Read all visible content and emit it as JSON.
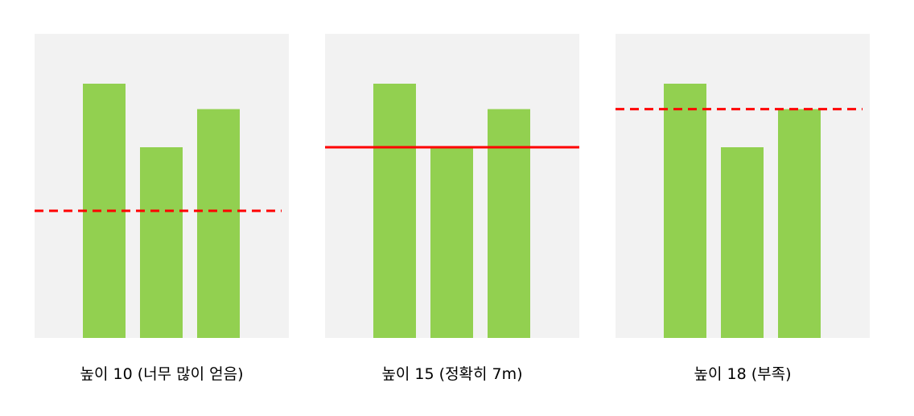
{
  "colors": {
    "panel_background": "#f2f2f2",
    "bar": "#92d050",
    "cut_line": "#ff0000"
  },
  "panels": [
    {
      "caption": "높이 10 (너무 많이 얻음)",
      "bar_heights": [
        20,
        15,
        18
      ],
      "cut_height": 10,
      "line_style": "dashed"
    },
    {
      "caption": "높이 15 (정확히 7m)",
      "bar_heights": [
        20,
        15,
        18
      ],
      "cut_height": 15,
      "line_style": "solid"
    },
    {
      "caption": "높이 18 (부족)",
      "bar_heights": [
        20,
        15,
        18
      ],
      "cut_height": 18,
      "line_style": "dashed"
    }
  ]
}
